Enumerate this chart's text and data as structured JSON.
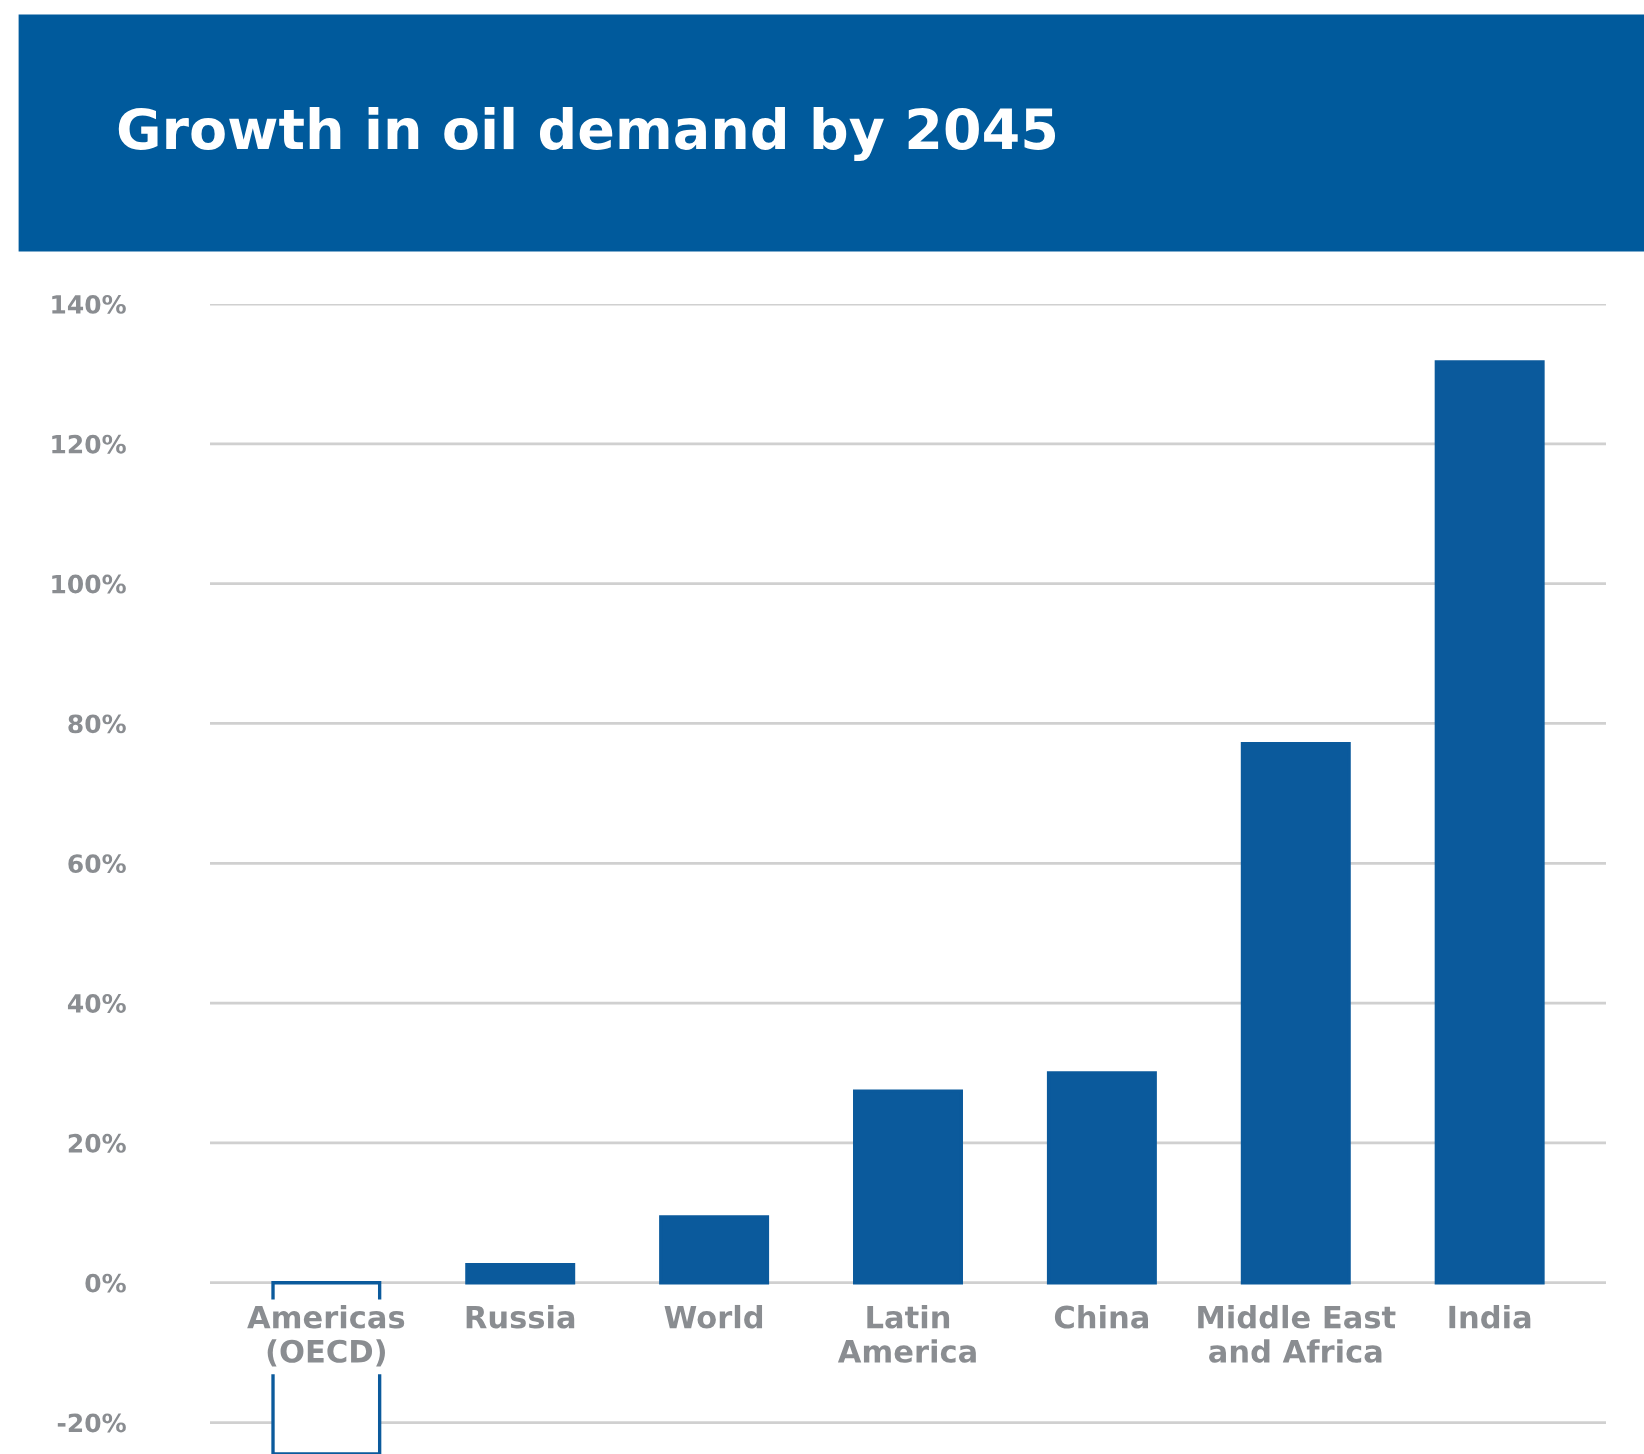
{
  "chart_data": {
    "type": "bar",
    "title": "Growth in oil demand by 2045",
    "categories": [
      "Americas\n(OECD)",
      "Russia",
      "World",
      "Latin\nAmerica",
      "China",
      "Middle East\nand Africa",
      "India"
    ],
    "values": [
      -24.5,
      2.6,
      9.4,
      27.4,
      30,
      77.1,
      131.7
    ],
    "colors": [
      "#ffffff",
      "#0b5a9c",
      "#0b5a9c",
      "#0b5a9c",
      "#0b5a9c",
      "#0b5a9c",
      "#0b5a9c"
    ],
    "ylim": [
      -24.5,
      140
    ],
    "yticks": [
      {
        "value": -20,
        "label": "-20%"
      },
      {
        "value": 0,
        "label": "0%"
      },
      {
        "value": 20,
        "label": "20%"
      },
      {
        "value": 40,
        "label": "40%"
      },
      {
        "value": 60,
        "label": "60%"
      },
      {
        "value": 80,
        "label": "80%"
      },
      {
        "value": 100,
        "label": "100%"
      },
      {
        "value": 120,
        "label": "120%"
      },
      {
        "value": 140,
        "label": "140%"
      }
    ],
    "grid": "y"
  }
}
